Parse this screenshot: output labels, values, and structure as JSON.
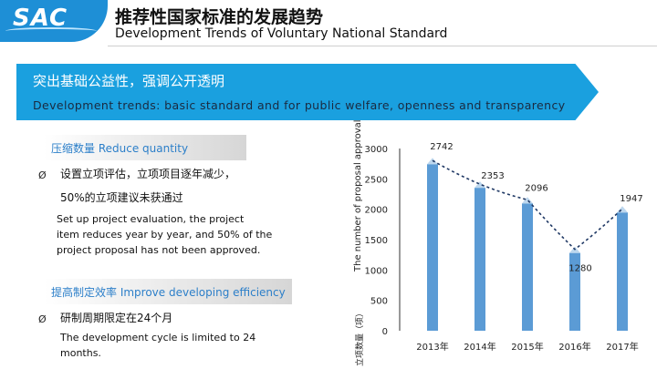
{
  "header": {
    "logo": "SAC",
    "title_cn": "推荐性国家标准的发展趋势",
    "title_en": "Development Trends of Voluntary National Standard"
  },
  "banner": {
    "title_cn": "突出基础公益性，强调公开透明",
    "subtitle_en": "Development trends: basic standard and for public welfare, openness and transparency"
  },
  "left": {
    "section1": {
      "heading": "压缩数量  Reduce quantity",
      "bullet_mark": "Ø",
      "line1_cn": "设置立项评估，立项项目逐年减少，",
      "line2_cn": "50%的立项建议未获通过",
      "en_1": "Set up project evaluation, the project",
      "en_2": "item reduces year by year, and 50% of the",
      "en_3": "project proposal has not been approved."
    },
    "section2": {
      "heading": "提高制定效率 Improve developing efficiency",
      "bullet_mark": "Ø",
      "line1_cn": "研制周期限定在24个月",
      "en_1": "The development cycle is limited to 24",
      "en_2": "months."
    }
  },
  "colors": {
    "brand_blue": "#1e8fd6",
    "banner_blue": "#1aa0df",
    "bar_blue": "#5b9bd5",
    "bar_top": "#bdd7ee",
    "trend_line": "#1f3864"
  },
  "chart_data": {
    "type": "bar",
    "categories": [
      "2013年",
      "2014年",
      "2015年",
      "2016年",
      "2017年"
    ],
    "values": [
      2742,
      2353,
      2096,
      1280,
      1947
    ],
    "ylabel": "The number of proposal approval",
    "ylabel2": "立项数量（项）",
    "ylim": [
      0,
      3000
    ],
    "yticks": [
      0,
      500,
      1000,
      1500,
      2000,
      2500,
      3000
    ],
    "data_labels": true,
    "trendline": "dashed",
    "grid": false
  }
}
